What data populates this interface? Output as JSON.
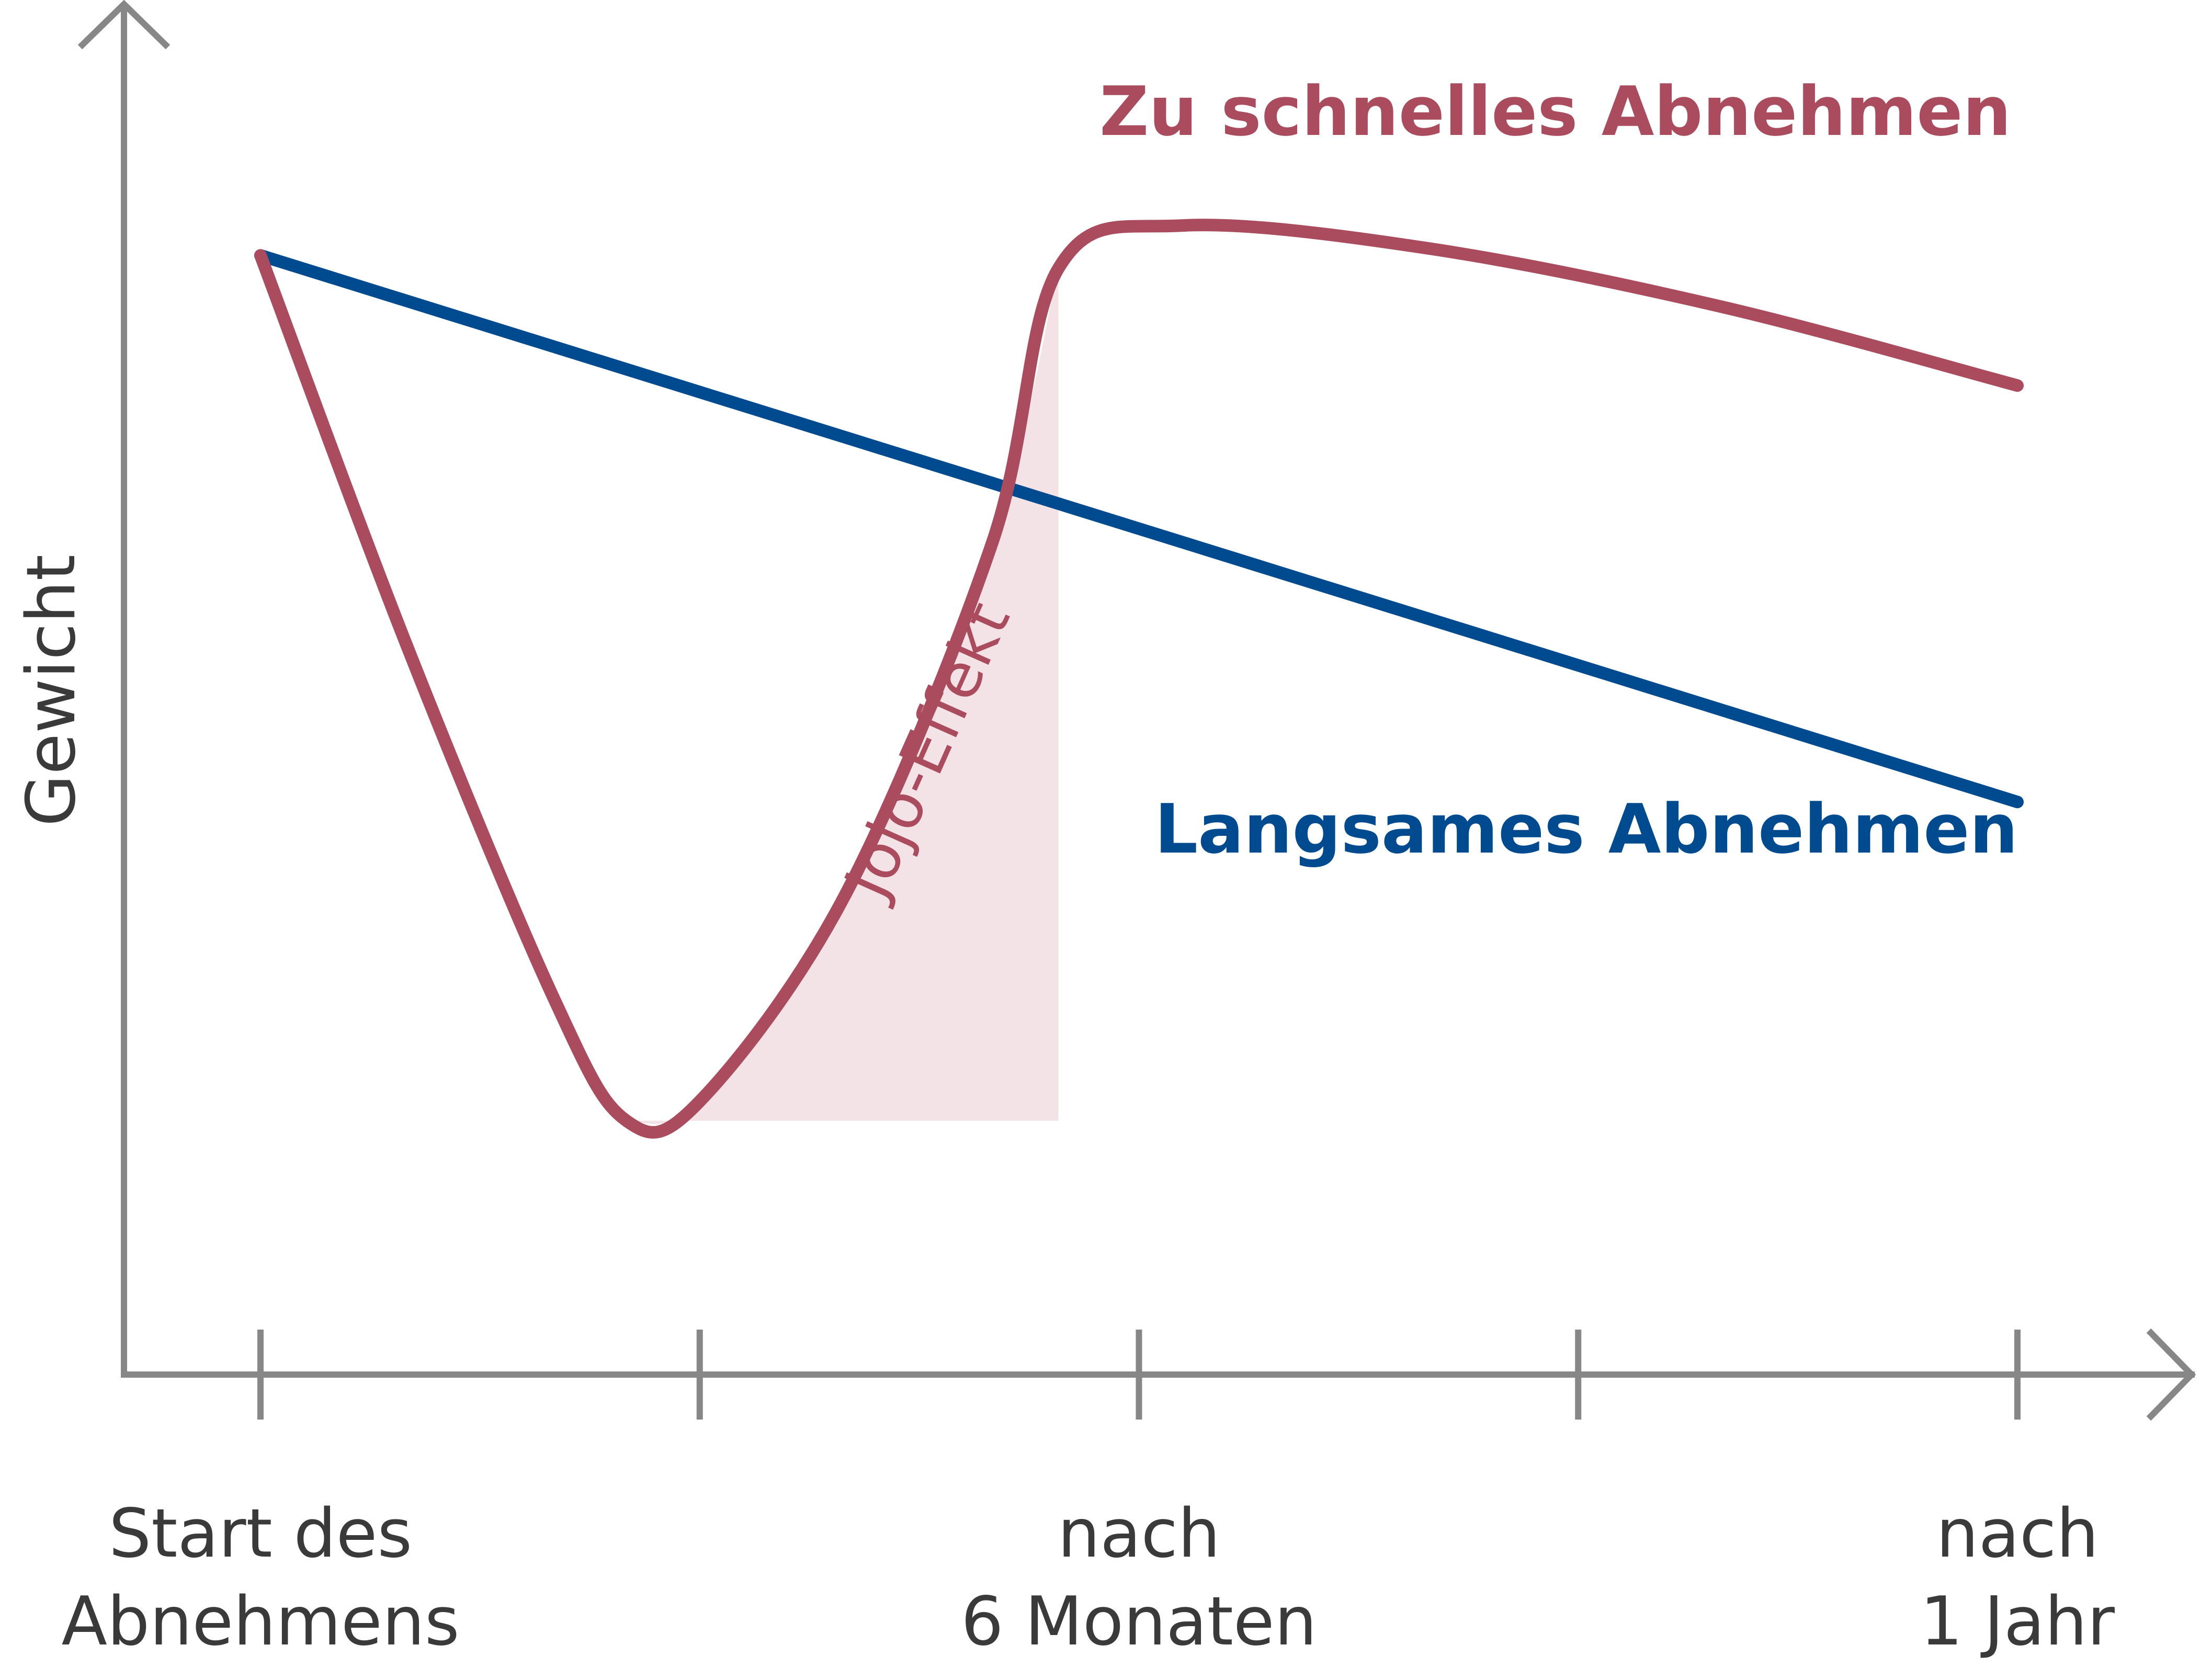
{
  "chart_data": {
    "type": "line",
    "title": "",
    "ylabel": "Gewicht",
    "xlabel": "",
    "xlim": [
      0,
      12
    ],
    "ylim": [
      0,
      100
    ],
    "grid": false,
    "legend": "inline labels",
    "colors": {
      "axis": "#878787",
      "fast": "#aa4b5e",
      "slow": "#004a8f",
      "jojo_fill": "#f3e2e6",
      "text": "#3a3a3a"
    },
    "x_ticks": [
      0,
      3,
      6,
      9,
      12
    ],
    "x_tick_labels": [
      {
        "x": 0,
        "lines": [
          "Start des",
          "Abnehmens"
        ]
      },
      {
        "x": 6,
        "lines": [
          "nach",
          "6 Monaten"
        ]
      },
      {
        "x": 12,
        "lines": [
          "nach",
          "1 Jahr"
        ]
      }
    ],
    "series": [
      {
        "name": "Langsames Abnehmen",
        "color": "#004a8f",
        "x": [
          0,
          12
        ],
        "y": [
          86,
          44
        ]
      },
      {
        "name": "Zu schnelles Abnehmen",
        "color": "#aa4b5e",
        "x": [
          0,
          1.0,
          2.0,
          2.5,
          3.0,
          4.0,
          5.0,
          5.45,
          6.3,
          8.0,
          10.0,
          12.0
        ],
        "y": [
          86,
          56,
          29,
          19.5,
          21,
          37,
          64,
          85,
          88.3,
          86.5,
          82,
          76
        ]
      }
    ],
    "annotations": [
      {
        "text": "Jojo-Effekt",
        "color": "#aa4b5e",
        "region": {
          "x_from": 2.5,
          "x_to": 5.45,
          "y_base": 19.5
        }
      }
    ]
  }
}
